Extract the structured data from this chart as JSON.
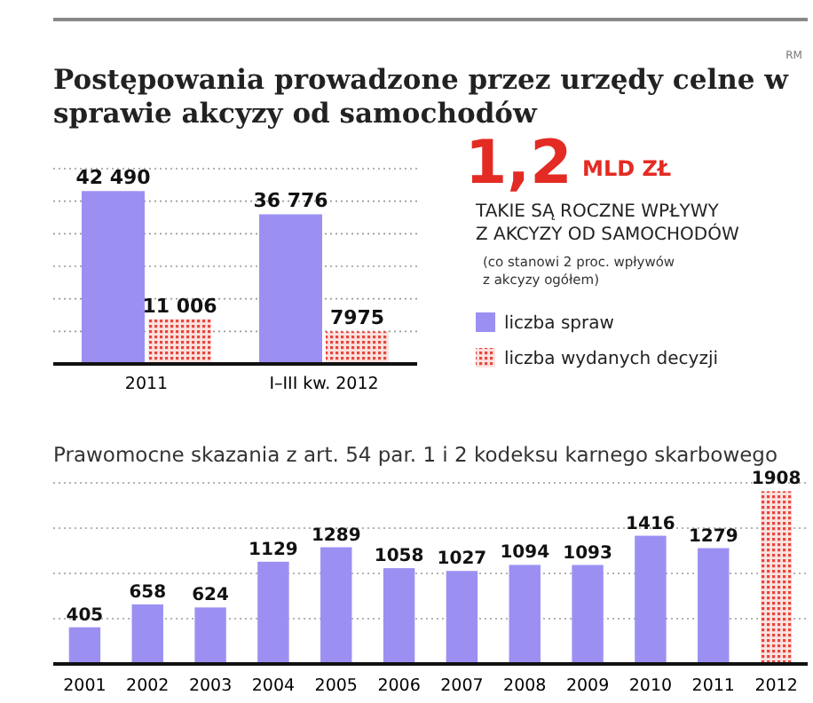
{
  "chart_data": [
    {
      "type": "bar",
      "title": "Postępowania prowadzone przez urzędy celne w sprawie akcyzy od samochodów",
      "annotations": [
        "RM"
      ],
      "categories": [
        "2011",
        "I–III kw. 2012"
      ],
      "series": [
        {
          "name": "liczba spraw",
          "color": "#9b90f2",
          "values": [
            42490,
            36776
          ],
          "value_labels": [
            "42 490",
            "36 776"
          ]
        },
        {
          "name": "liczba wydanych decyzji",
          "color": "#e8453c",
          "values": [
            11006,
            7975
          ],
          "value_labels": [
            "11 006",
            "7975"
          ]
        }
      ],
      "ylim": [
        0,
        48000
      ],
      "yticks": [
        {
          "value": 8000,
          "label": null
        },
        {
          "value": 16000,
          "label": null
        },
        {
          "value": 24000,
          "label": null
        },
        {
          "value": 32000,
          "label": null
        },
        {
          "value": 40000,
          "label": null
        },
        {
          "value": 48000,
          "label": null
        }
      ],
      "grid": "y",
      "tick_labels": "x",
      "legend": "right"
    },
    {
      "type": "other",
      "annotations": [
        "1,2",
        "MLD ZŁ",
        "TAKIE SĄ ROCZNE WPŁYWY",
        "Z AKCYZY OD SAMOCHODÓW",
        "(co stanowi 2 proc. wpływów",
        "z akcyzy ogółem)"
      ]
    },
    {
      "type": "bar",
      "title": "Prawomocne skazania z art. 54 par. 1 i 2 kodeksu karnego skarbowego",
      "categories": [
        "2001",
        "2002",
        "2003",
        "2004",
        "2005",
        "2006",
        "2007",
        "2008",
        "2009",
        "2010",
        "2011",
        "2012"
      ],
      "values": [
        405,
        658,
        624,
        1129,
        1289,
        1058,
        1027,
        1094,
        1093,
        1416,
        1279,
        1908
      ],
      "colors": [
        "#9b90f2",
        "#9b90f2",
        "#9b90f2",
        "#9b90f2",
        "#9b90f2",
        "#9b90f2",
        "#9b90f2",
        "#9b90f2",
        "#9b90f2",
        "#9b90f2",
        "#9b90f2",
        "#e8453c"
      ],
      "data_labels": true,
      "ylim": [
        0,
        2000
      ],
      "yticks": [
        {
          "value": 500,
          "label": null
        },
        {
          "value": 1000,
          "label": null
        },
        {
          "value": 1500,
          "label": null
        },
        {
          "value": 2000,
          "label": null
        }
      ],
      "grid": "y",
      "tick_labels": "x"
    }
  ]
}
